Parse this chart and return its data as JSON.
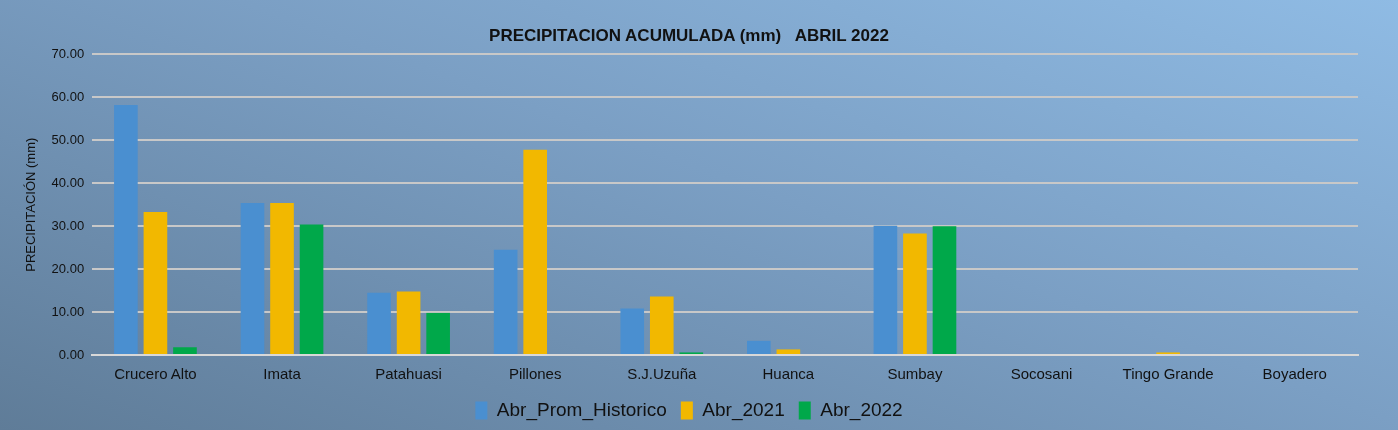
{
  "chart_data": {
    "type": "bar",
    "title": "PRECIPITACION ACUMULADA (mm)   ABRIL 2022",
    "ylabel": "PRECIPITACIÓN (mm)",
    "categories": [
      "Crucero Alto",
      "Imata",
      "Patahuasi",
      "Pillones",
      "S.J.Uzuña",
      "Huanca",
      "Sumbay",
      "Socosani",
      "Tingo Grande",
      "Boyadero"
    ],
    "series": [
      {
        "name": "Abr_Prom_Historico",
        "color": "#4a8fd0",
        "values": [
          58.2,
          35.4,
          14.5,
          24.5,
          10.8,
          3.3,
          30.1,
          0,
          0,
          0
        ]
      },
      {
        "name": "Abr_2021",
        "color": "#f2b800",
        "values": [
          33.3,
          35.4,
          14.8,
          47.8,
          13.6,
          1.3,
          28.3,
          0,
          0.6,
          0
        ]
      },
      {
        "name": "Abr_2022",
        "color": "#00a84a",
        "values": [
          1.8,
          30.4,
          9.8,
          0,
          0.6,
          0,
          30.0,
          0,
          0,
          0
        ]
      }
    ],
    "ylim": [
      0,
      70
    ],
    "yticks": [
      {
        "value": 0,
        "label": "0.00"
      },
      {
        "value": 10,
        "label": "10.00"
      },
      {
        "value": 20,
        "label": "20.00"
      },
      {
        "value": 30,
        "label": "30.00"
      },
      {
        "value": 40,
        "label": "40.00"
      },
      {
        "value": 50,
        "label": "50.00"
      },
      {
        "value": 60,
        "label": "60.00"
      },
      {
        "value": 70,
        "label": "70.00"
      }
    ],
    "grid": "y",
    "legend": "bottom"
  }
}
